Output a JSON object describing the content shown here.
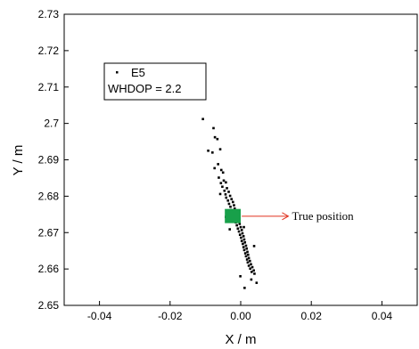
{
  "chart_data": {
    "type": "scatter",
    "xlabel": "X / m",
    "ylabel": "Y / m",
    "xlim": [
      -0.05,
      0.05
    ],
    "ylim": [
      2.65,
      2.73
    ],
    "xticks": [
      -0.04,
      -0.02,
      0.0,
      0.02,
      0.04
    ],
    "xtick_labels": [
      "-0.04",
      "-0.02",
      "0.00",
      "0.02",
      "0.04"
    ],
    "yticks": [
      2.65,
      2.66,
      2.67,
      2.68,
      2.69,
      2.7,
      2.71,
      2.72,
      2.73
    ],
    "ytick_labels": [
      "2.65",
      "2.66",
      "2.67",
      "2.68",
      "2.69",
      "2.7",
      "2.71",
      "2.72",
      "2.73"
    ],
    "grid": false,
    "legend": {
      "placement": "upper-left",
      "series_label": "E5",
      "extra_line": "WHDOP = 2.2"
    },
    "series": [
      {
        "name": "E5",
        "marker": "square-dot",
        "color": "#000000",
        "points": [
          [
            -0.0107,
            2.7012
          ],
          [
            -0.0077,
            2.6987
          ],
          [
            -0.0073,
            2.6962
          ],
          [
            -0.0066,
            2.6957
          ],
          [
            -0.0092,
            2.6925
          ],
          [
            -0.008,
            2.692
          ],
          [
            -0.0058,
            2.6929
          ],
          [
            -0.0064,
            2.6888
          ],
          [
            -0.0074,
            2.6877
          ],
          [
            -0.0055,
            2.6872
          ],
          [
            -0.005,
            2.6865
          ],
          [
            -0.0062,
            2.6851
          ],
          [
            -0.0048,
            2.6843
          ],
          [
            -0.0056,
            2.6836
          ],
          [
            -0.0042,
            2.6838
          ],
          [
            -0.0052,
            2.6826
          ],
          [
            -0.0039,
            2.6822
          ],
          [
            -0.0046,
            2.6815
          ],
          [
            -0.0034,
            2.6812
          ],
          [
            -0.0043,
            2.6805
          ],
          [
            -0.003,
            2.6801
          ],
          [
            -0.0041,
            2.6796
          ],
          [
            -0.0026,
            2.6792
          ],
          [
            -0.0036,
            2.6788
          ],
          [
            -0.0022,
            2.6784
          ],
          [
            -0.0033,
            2.6779
          ],
          [
            -0.0019,
            2.6775
          ],
          [
            -0.0029,
            2.6771
          ],
          [
            -0.0017,
            2.6766
          ],
          [
            -0.0027,
            2.6762
          ],
          [
            -0.0014,
            2.6758
          ],
          [
            -0.0023,
            2.6754
          ],
          [
            -0.0011,
            2.6749
          ],
          [
            -0.002,
            2.6745
          ],
          [
            -0.0008,
            2.6741
          ],
          [
            -0.0017,
            2.6737
          ],
          [
            -0.0005,
            2.6732
          ],
          [
            -0.0014,
            2.6728
          ],
          [
            -0.0003,
            2.6724
          ],
          [
            -0.0011,
            2.672
          ],
          [
            0.0,
            2.6715
          ],
          [
            -0.0008,
            2.6711
          ],
          [
            0.0003,
            2.6707
          ],
          [
            -0.0005,
            2.6703
          ],
          [
            0.0005,
            2.6698
          ],
          [
            -0.0002,
            2.6694
          ],
          [
            0.0008,
            2.669
          ],
          [
            0.0001,
            2.6686
          ],
          [
            0.001,
            2.6681
          ],
          [
            0.0003,
            2.6677
          ],
          [
            0.0012,
            2.6673
          ],
          [
            0.0006,
            2.6669
          ],
          [
            0.0015,
            2.6664
          ],
          [
            0.0008,
            2.666
          ],
          [
            0.0017,
            2.6656
          ],
          [
            0.001,
            2.6652
          ],
          [
            0.0019,
            2.6647
          ],
          [
            0.0013,
            2.6643
          ],
          [
            0.0021,
            2.6639
          ],
          [
            0.0015,
            2.6635
          ],
          [
            0.0023,
            2.663
          ],
          [
            0.0018,
            2.6626
          ],
          [
            0.0026,
            2.6622
          ],
          [
            0.002,
            2.6618
          ],
          [
            0.0029,
            2.6613
          ],
          [
            0.0023,
            2.6609
          ],
          [
            0.0033,
            2.6605
          ],
          [
            0.0027,
            2.6601
          ],
          [
            0.0037,
            2.6596
          ],
          [
            0.0031,
            2.6592
          ],
          [
            0.0039,
            2.6587
          ],
          [
            0.0045,
            2.6562
          ],
          [
            0.0011,
            2.6548
          ],
          [
            -0.0001,
            2.658
          ],
          [
            -0.0042,
            2.6743
          ],
          [
            0.0038,
            2.6663
          ],
          [
            -0.0058,
            2.6806
          ],
          [
            0.003,
            2.6571
          ],
          [
            -0.0031,
            2.6709
          ],
          [
            0.0009,
            2.6715
          ]
        ]
      }
    ],
    "markers": [
      {
        "name": "true-position-marker",
        "shape": "rectangle",
        "color": "#18a04a",
        "x_range": [
          -0.0045,
          0.0
        ],
        "y_range": [
          2.6726,
          2.6765
        ]
      }
    ],
    "annotations": [
      {
        "text": "True position",
        "arrow_from_data": [
          0.0003,
          2.6745
        ],
        "arrow_to_data": [
          0.0135,
          2.6745
        ],
        "color": "#e0301e"
      }
    ]
  }
}
